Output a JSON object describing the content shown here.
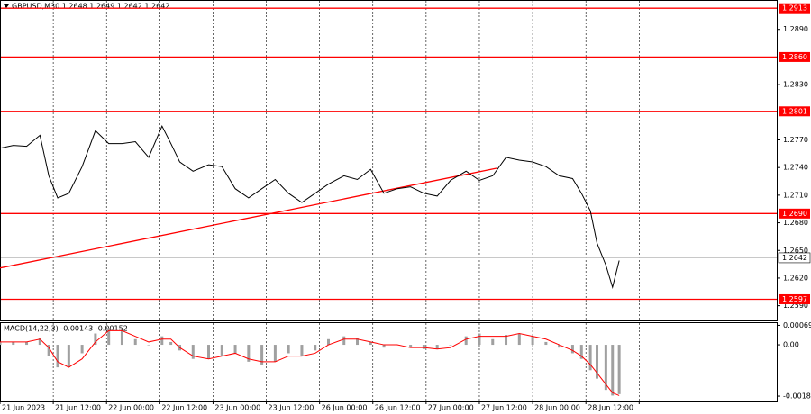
{
  "chart_data": {
    "type": "line",
    "title": "GBPUSD,M30  1.2648 1.2649 1.2642 1.2642",
    "x": [
      0,
      6,
      12,
      18,
      22,
      26,
      31,
      37,
      43,
      49,
      55,
      61,
      67,
      73,
      77,
      81,
      87,
      94,
      100,
      106,
      112,
      118,
      124,
      130,
      136,
      142,
      148,
      155,
      161,
      167,
      173,
      179,
      185,
      191,
      197,
      203,
      210,
      216,
      222,
      228,
      234,
      240,
      246,
      252,
      258,
      262,
      266,
      269,
      273,
      276,
      279
    ],
    "series": [
      {
        "name": "GBPUSD",
        "color": "#000000",
        "values": [
          1.2761,
          1.2764,
          1.2763,
          1.2775,
          1.2731,
          1.2707,
          1.2712,
          1.2741,
          1.278,
          1.2766,
          1.2766,
          1.2768,
          1.2751,
          1.2785,
          1.2766,
          1.2746,
          1.2736,
          1.2743,
          1.2741,
          1.2717,
          1.2707,
          1.2717,
          1.2727,
          1.2712,
          1.2702,
          1.2712,
          1.2722,
          1.2731,
          1.2727,
          1.2738,
          1.2712,
          1.2717,
          1.2719,
          1.2712,
          1.2709,
          1.2726,
          1.2736,
          1.2726,
          1.2731,
          1.2751,
          1.2748,
          1.2746,
          1.2741,
          1.2731,
          1.2728,
          1.2712,
          1.2693,
          1.2658,
          1.2634,
          1.261,
          1.2639
        ]
      }
    ],
    "xlim": [
      0,
      350
    ],
    "xticks": [
      {
        "value": 0,
        "label": "21 Jun 2023"
      },
      {
        "value": 24,
        "label": "21 Jun 12:00"
      },
      {
        "value": 48,
        "label": "22 Jun 00:00"
      },
      {
        "value": 72,
        "label": "22 Jun 12:00"
      },
      {
        "value": 96,
        "label": "23 Jun 00:00"
      },
      {
        "value": 120,
        "label": "23 Jun 12:00"
      },
      {
        "value": 144,
        "label": "26 Jun 00:00"
      },
      {
        "value": 168,
        "label": "26 Jun 12:00"
      },
      {
        "value": 192,
        "label": "27 Jun 00:00"
      },
      {
        "value": 216,
        "label": "27 Jun 12:00"
      },
      {
        "value": 240,
        "label": "28 Jun 00:00"
      },
      {
        "value": 264,
        "label": "28 Jun 12:00"
      },
      {
        "value": 288,
        "label": ""
      }
    ],
    "ylim": [
      1.2574,
      1.2922
    ],
    "yticks": [
      {
        "value": 1.289,
        "label": "1.2890"
      },
      {
        "value": 1.283,
        "label": "1.2830"
      },
      {
        "value": 1.277,
        "label": "1.2770"
      },
      {
        "value": 1.274,
        "label": "1.2740"
      },
      {
        "value": 1.271,
        "label": "1.2710"
      },
      {
        "value": 1.268,
        "label": "1.2680"
      },
      {
        "value": 1.265,
        "label": "1.2650"
      },
      {
        "value": 1.262,
        "label": "1.2620"
      },
      {
        "value": 1.259,
        "label": "1.2590"
      }
    ],
    "levels": [
      1.2913,
      {
        "value": 1.286,
        "label": "1.2860"
      },
      1.2801,
      {
        "value": 1.269,
        "label": "1.2690"
      },
      1.2597
    ],
    "level_color": "#ff0000",
    "current_price": 1.2642,
    "trendline": {
      "x": [
        0,
        224
      ],
      "values": [
        1.2631,
        1.27393
      ]
    },
    "macd": {
      "label": "MACD(14,22,3) -0.00143 -0.00152",
      "ylim": [
        -0.00201,
        0.0008
      ],
      "yticks": [
        0.00069,
        {
          "value": 0,
          "label": "0.00"
        },
        -0.00182
      ],
      "histogram": [
        0.0001,
        0.0001,
        0.0001,
        0.00025,
        -0.0004,
        -0.0008,
        -0.0008,
        -0.0003,
        0.0004,
        0.0006,
        0.0005,
        0.0002,
        0.0,
        0.0003,
        0.0001,
        -0.0002,
        -0.0005,
        -0.0005,
        -0.0004,
        -0.0003,
        -0.0006,
        -0.0007,
        -0.0006,
        -0.0003,
        -0.0004,
        -0.0002,
        0.0002,
        0.0003,
        0.00025,
        0.0001,
        -0.0001,
        0.0,
        -0.0001,
        -0.00015,
        -0.00015,
        0.0,
        0.0003,
        0.0004,
        0.0002,
        0.00035,
        0.0004,
        0.0003,
        0.0001,
        -0.0001,
        -0.0003,
        -0.0005,
        -0.0009,
        -0.0012,
        -0.0016,
        -0.0018,
        -0.00175
      ],
      "signal": [
        0.0001,
        0.0001,
        0.0001,
        0.0002,
        -0.0001,
        -0.0006,
        -0.0008,
        -0.0005,
        0.0001,
        0.0005,
        0.0005,
        0.0003,
        0.0001,
        0.0002,
        0.0002,
        -0.0001,
        -0.0004,
        -0.0005,
        -0.0004,
        -0.0003,
        -0.0005,
        -0.0006,
        -0.0006,
        -0.0004,
        -0.0004,
        -0.0003,
        0.0,
        0.0002,
        0.0002,
        0.0001,
        0.0,
        0.0,
        -0.0001,
        -0.0001,
        -0.00015,
        -0.0001,
        0.0002,
        0.0003,
        0.0003,
        0.0003,
        0.0004,
        0.0003,
        0.0002,
        0.0,
        -0.0002,
        -0.0004,
        -0.0007,
        -0.001,
        -0.0014,
        -0.0017,
        -0.0018
      ],
      "histogram_color": "#a0a0a0",
      "signal_color": "#ff0000"
    }
  }
}
